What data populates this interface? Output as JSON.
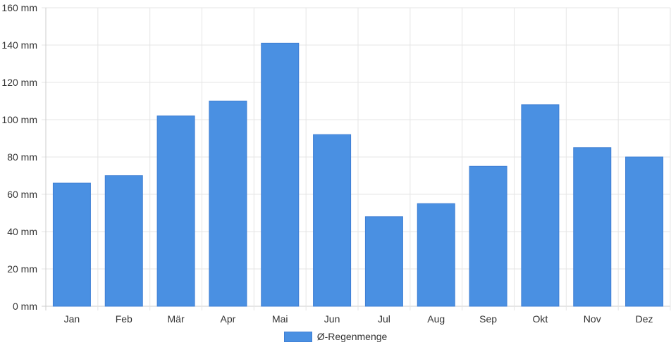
{
  "chart_data": {
    "type": "bar",
    "categories": [
      "Jan",
      "Feb",
      "Mär",
      "Apr",
      "Mai",
      "Jun",
      "Jul",
      "Aug",
      "Sep",
      "Okt",
      "Nov",
      "Dez"
    ],
    "series": [
      {
        "name": "Ø-Regenmenge",
        "values": [
          66,
          70,
          102,
          110,
          141,
          92,
          48,
          55,
          75,
          108,
          85,
          80
        ]
      }
    ],
    "y_ticks": [
      "0 mm",
      "20 mm",
      "40 mm",
      "60 mm",
      "80 mm",
      "100 mm",
      "120 mm",
      "140 mm",
      "160 mm"
    ],
    "ylim": [
      0,
      160
    ],
    "grid": true,
    "legend_position": "bottom",
    "colors": {
      "bar": "#4a90e2",
      "grid": "#e5e5e5",
      "axis": "#cccccc"
    }
  }
}
